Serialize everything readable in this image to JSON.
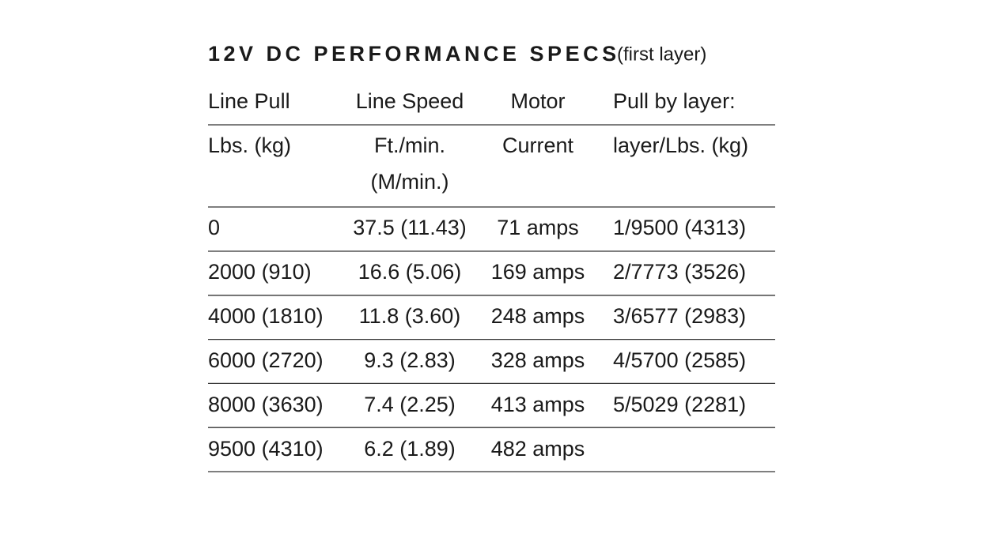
{
  "title": "12V DC PERFORMANCE SPECS",
  "subtitle": "(first layer)",
  "table": {
    "header": [
      [
        "Line Pull"
      ],
      [
        "Line Speed"
      ],
      [
        "Motor"
      ],
      [
        "Pull by layer:"
      ]
    ],
    "units": [
      [
        "Lbs. (kg)"
      ],
      [
        "Ft./min.",
        "(M/min.)"
      ],
      [
        "Current"
      ],
      [
        "layer/Lbs. (kg)"
      ]
    ],
    "rows": [
      [
        "0",
        "37.5 (11.43)",
        "71 amps",
        "1/9500 (4313)"
      ],
      [
        "2000 (910)",
        "16.6 (5.06)",
        "169 amps",
        "2/7773 (3526)"
      ],
      [
        "4000 (1810)",
        "11.8 (3.60)",
        "248 amps",
        "3/6577 (2983)"
      ],
      [
        "6000 (2720)",
        "9.3 (2.83)",
        "328 amps",
        "4/5700 (2585)"
      ],
      [
        "8000 (3630)",
        "7.4 (2.25)",
        "413 amps",
        "5/5029 (2281)"
      ],
      [
        "9500 (4310)",
        "6.2 (1.89)",
        "482 amps"
      ]
    ]
  }
}
